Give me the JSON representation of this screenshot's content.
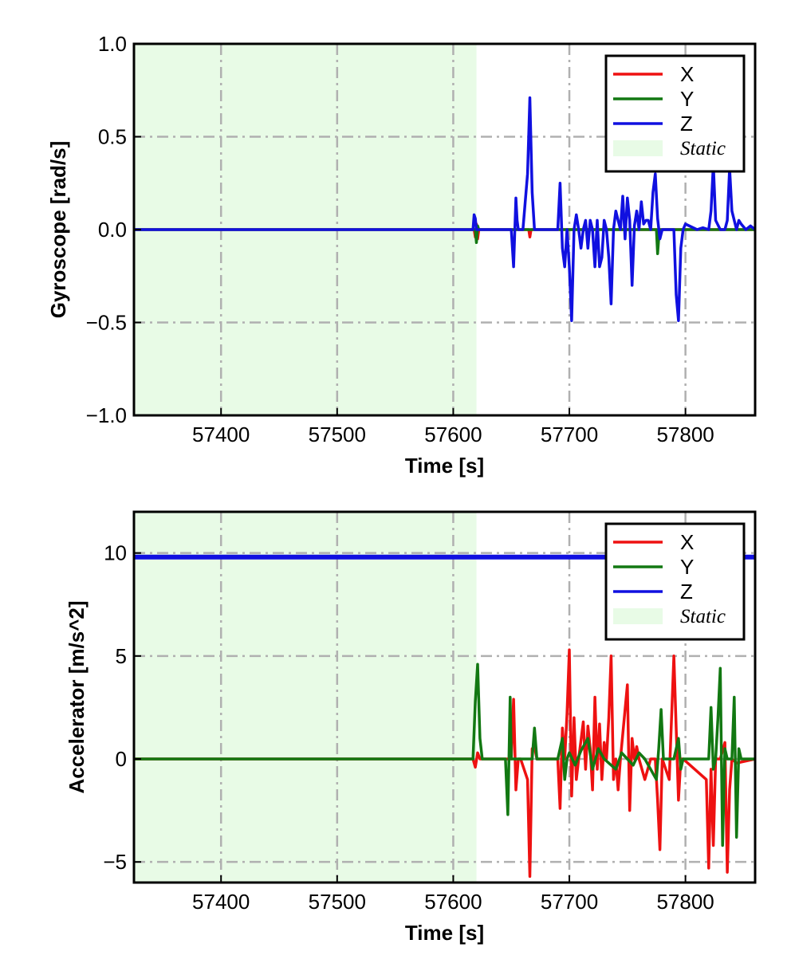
{
  "colors": {
    "X": "#ee1111",
    "Y": "#127812",
    "Z": "#1010e0",
    "static_fill": "#e8fbe6",
    "grid": "#b0b0b0"
  },
  "chart_data": [
    {
      "type": "line",
      "xlabel": "Time [s]",
      "ylabel": "Gyroscope [rad/s]",
      "xlim": [
        57325,
        57860
      ],
      "ylim": [
        -1.0,
        1.0
      ],
      "xticks": [
        57400,
        57500,
        57600,
        57700,
        57800
      ],
      "xtick_labels": [
        "57400",
        "57500",
        "57600",
        "57700",
        "57800"
      ],
      "yticks": [
        -1.0,
        -0.5,
        0.0,
        0.5,
        1.0
      ],
      "ytick_labels": [
        "−1.0",
        "−0.5",
        "0.0",
        "0.5",
        "1.0"
      ],
      "grid": true,
      "legend_position": "top-right",
      "static_region": {
        "label": "Static",
        "x_start": 57325,
        "x_end": 57620
      },
      "series": [
        {
          "name": "X",
          "x": [
            57325,
            57618,
            57619,
            57620,
            57621,
            57622,
            57665,
            57666,
            57667,
            57668,
            57860
          ],
          "y": [
            0,
            0,
            -0.04,
            0.03,
            -0.05,
            0,
            0,
            -0.04,
            0,
            0,
            0
          ]
        },
        {
          "name": "Y",
          "x": [
            57325,
            57619,
            57620,
            57621,
            57622,
            57775,
            57776,
            57777,
            57778,
            57860
          ],
          "y": [
            0,
            0,
            -0.07,
            0.02,
            0,
            0,
            -0.13,
            -0.05,
            0,
            0
          ]
        },
        {
          "name": "Z",
          "x": [
            57325,
            57617,
            57618,
            57619,
            57620,
            57621,
            57650,
            57652,
            57654,
            57655,
            57656,
            57660,
            57664,
            57666,
            57668,
            57670,
            57690,
            57692,
            57694,
            57696,
            57698,
            57700,
            57702,
            57704,
            57706,
            57708,
            57710,
            57712,
            57714,
            57716,
            57718,
            57720,
            57722,
            57724,
            57726,
            57728,
            57730,
            57732,
            57734,
            57736,
            57738,
            57740,
            57742,
            57744,
            57746,
            57748,
            57750,
            57752,
            57754,
            57756,
            57758,
            57760,
            57762,
            57764,
            57766,
            57768,
            57770,
            57772,
            57774,
            57776,
            57778,
            57780,
            57785,
            57790,
            57792,
            57794,
            57796,
            57798,
            57800,
            57810,
            57815,
            57820,
            57822,
            57824,
            57826,
            57830,
            57834,
            57836,
            57838,
            57840,
            57844,
            57846,
            57848,
            57852,
            57856,
            57860
          ],
          "y": [
            0,
            0,
            0.08,
            0.06,
            0,
            0,
            0,
            -0.2,
            0.17,
            0.05,
            0,
            0,
            0.3,
            0.71,
            0.2,
            0,
            0,
            0.25,
            -0.1,
            -0.2,
            0,
            -0.2,
            -0.49,
            0,
            0.08,
            0,
            -0.1,
            0,
            0.05,
            -0.1,
            0.05,
            0,
            -0.2,
            0.05,
            -0.2,
            -0.15,
            0.05,
            0,
            -0.15,
            -0.4,
            0,
            0.1,
            0.05,
            0,
            0.18,
            -0.05,
            0.17,
            0.05,
            -0.3,
            0.02,
            0.1,
            0,
            0.15,
            0.03,
            0.05,
            0.05,
            0,
            0.2,
            0.3,
            0.06,
            -0.05,
            0,
            0,
            0,
            -0.35,
            -0.49,
            -0.1,
            0,
            0.03,
            0,
            0.01,
            0,
            0.1,
            0.35,
            0.05,
            0,
            0,
            0.05,
            0.33,
            0.1,
            0,
            0.05,
            0.03,
            0,
            0.02,
            0
          ]
        }
      ]
    },
    {
      "type": "line",
      "xlabel": "Time [s]",
      "ylabel": "Accelerator [m/s^2]",
      "xlim": [
        57325,
        57860
      ],
      "ylim": [
        -6.0,
        12.0
      ],
      "xticks": [
        57400,
        57500,
        57600,
        57700,
        57800
      ],
      "xtick_labels": [
        "57400",
        "57500",
        "57600",
        "57700",
        "57800"
      ],
      "yticks": [
        -5,
        0,
        5,
        10
      ],
      "ytick_labels": [
        "−5",
        "0",
        "5",
        "10"
      ],
      "grid": true,
      "legend_position": "top-right",
      "static_region": {
        "label": "Static",
        "x_start": 57325,
        "x_end": 57620
      },
      "series": [
        {
          "name": "X",
          "x": [
            57325,
            57617,
            57619,
            57621,
            57623,
            57650,
            57652,
            57654,
            57656,
            57658,
            57664,
            57666,
            57668,
            57670,
            57672,
            57690,
            57692,
            57694,
            57696,
            57698,
            57700,
            57702,
            57704,
            57706,
            57708,
            57712,
            57714,
            57716,
            57718,
            57720,
            57722,
            57724,
            57726,
            57728,
            57730,
            57732,
            57734,
            57736,
            57738,
            57740,
            57742,
            57744,
            57750,
            57752,
            57754,
            57756,
            57758,
            57760,
            57765,
            57770,
            57774,
            57776,
            57778,
            57780,
            57786,
            57790,
            57792,
            57794,
            57796,
            57798,
            57818,
            57820,
            57822,
            57824,
            57826,
            57830,
            57834,
            57836,
            57838,
            57840,
            57844,
            57860
          ],
          "y": [
            0,
            0,
            -0.4,
            0.3,
            0,
            0,
            2.9,
            -1.5,
            0,
            0,
            -1.0,
            -5.7,
            0.5,
            0.6,
            0,
            0,
            -2.4,
            1.5,
            0,
            2.2,
            5.3,
            -1.8,
            2.0,
            -1.0,
            0,
            1.8,
            -0.5,
            1.6,
            0.5,
            -1.5,
            3.0,
            -0.5,
            1.7,
            -1.0,
            0.8,
            0,
            2.0,
            5.0,
            -1.0,
            0,
            -1.5,
            0,
            3.6,
            -2.5,
            1.0,
            0,
            0.6,
            0,
            -1.0,
            0,
            0,
            -2.0,
            -4.4,
            0,
            -1.0,
            5.0,
            1.5,
            -2.0,
            0,
            0,
            -1.0,
            -5.3,
            -0.5,
            -4.2,
            0,
            0,
            0.8,
            -5.5,
            -1.5,
            0,
            -0.2,
            0
          ]
        },
        {
          "name": "Y",
          "x": [
            57325,
            57617,
            57619,
            57621,
            57623,
            57625,
            57645,
            57647,
            57649,
            57650,
            57652,
            57668,
            57670,
            57672,
            57690,
            57694,
            57696,
            57698,
            57700,
            57705,
            57710,
            57716,
            57720,
            57725,
            57730,
            57740,
            57745,
            57750,
            57755,
            57760,
            57765,
            57775,
            57777,
            57779,
            57781,
            57790,
            57794,
            57796,
            57798,
            57820,
            57822,
            57824,
            57826,
            57828,
            57830,
            57832,
            57834,
            57836,
            57840,
            57842,
            57844,
            57846,
            57848,
            57860
          ],
          "y": [
            0,
            0,
            2.8,
            4.6,
            1.0,
            0,
            0,
            -2.7,
            3.0,
            0,
            0,
            0,
            1.5,
            0,
            0,
            1.0,
            -1.0,
            0,
            0.3,
            -0.3,
            0.4,
            1.0,
            -0.5,
            0.5,
            0,
            -0.5,
            0.3,
            0,
            -0.3,
            0.3,
            0,
            -1.0,
            0.5,
            2.4,
            0,
            0,
            1.0,
            -0.5,
            0,
            0,
            2.5,
            -0.5,
            0,
            2.0,
            4.4,
            -4.2,
            0.5,
            0,
            0,
            3.0,
            -3.8,
            0.5,
            0,
            0
          ]
        },
        {
          "name": "Z",
          "x": [
            57325,
            57860
          ],
          "y": [
            9.8,
            9.8
          ]
        }
      ]
    }
  ]
}
